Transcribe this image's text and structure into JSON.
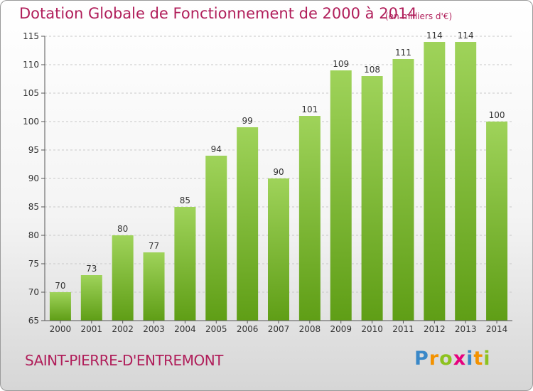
{
  "title": "Dotation Globale de Fonctionnement de 2000 à 2014",
  "subtitle": "(en milliers d'€)",
  "commune": "SAINT-PIERRE-D'ENTREMONT",
  "logo": {
    "letters": [
      "P",
      "r",
      "o",
      "x",
      "i",
      "t",
      "i"
    ],
    "colors": [
      "#3a88c8",
      "#f39200",
      "#8dc21f",
      "#e6007e",
      "#3a88c8",
      "#f39200",
      "#8dc21f"
    ]
  },
  "colors": {
    "title": "#b01e5a",
    "bar_top": "#9fd35a",
    "bar_bottom": "#5f9e16"
  },
  "chart_data": {
    "type": "bar",
    "title": "Dotation Globale de Fonctionnement de 2000 à 2014",
    "subtitle": "(en milliers d'€)",
    "categories": [
      "2000",
      "2001",
      "2002",
      "2003",
      "2004",
      "2005",
      "2006",
      "2007",
      "2008",
      "2009",
      "2010",
      "2011",
      "2012",
      "2013",
      "2014"
    ],
    "values": [
      70,
      73,
      80,
      77,
      85,
      94,
      99,
      90,
      101,
      109,
      108,
      111,
      114,
      114,
      100
    ],
    "ylim": [
      65,
      115
    ],
    "yticks": [
      65,
      70,
      75,
      80,
      85,
      90,
      95,
      100,
      105,
      110,
      115
    ],
    "grid": true
  }
}
